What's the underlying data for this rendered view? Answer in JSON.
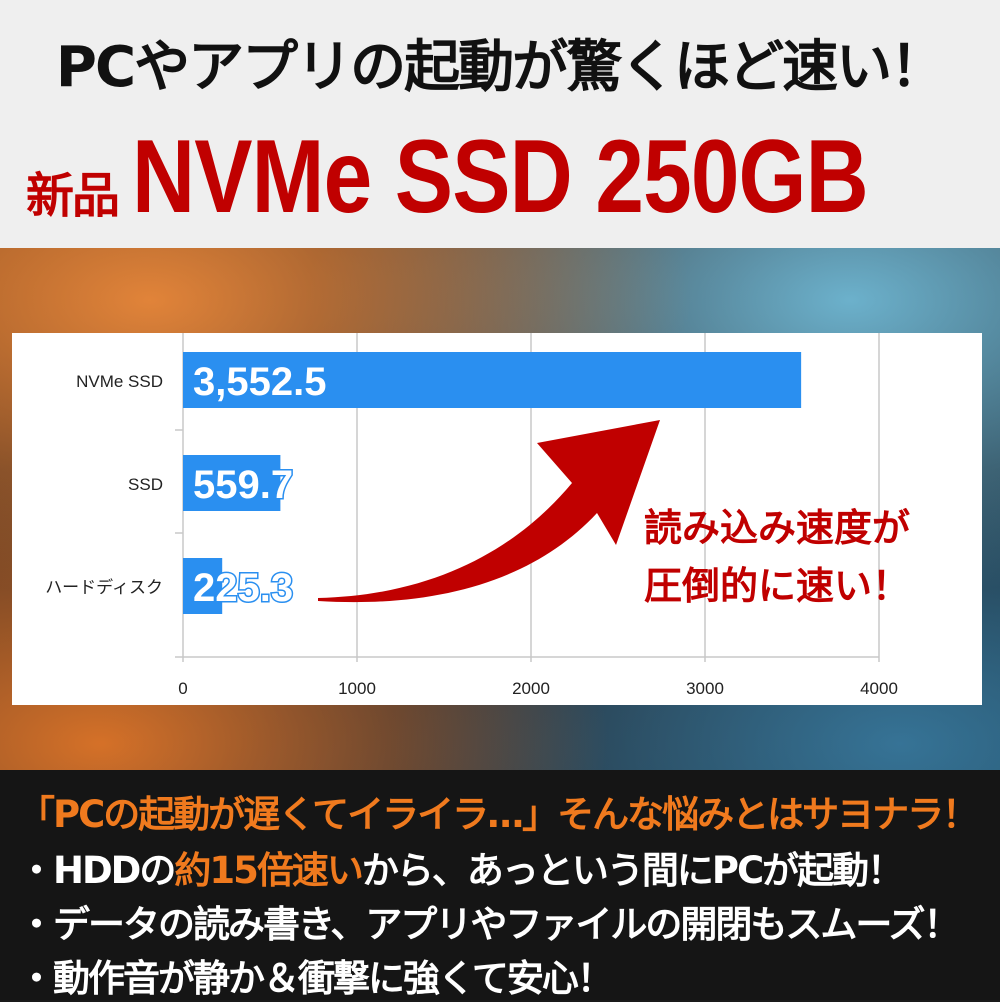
{
  "header": {
    "headline": "PCやアプリの起動が驚くほど速い！",
    "badge": "新品",
    "product": "NVMe SSD 250GB"
  },
  "colors": {
    "bar": "#2a8ff0",
    "accent_red": "#c00000",
    "accent_orange": "#f07a1e",
    "grid": "#c8c8c8"
  },
  "chart_data": {
    "type": "bar",
    "orientation": "horizontal",
    "categories": [
      "NVMe SSD",
      "SSD",
      "ハードディスク"
    ],
    "values": [
      3552.5,
      559.7,
      225.3
    ],
    "value_labels": [
      "3,552.5",
      "559.7",
      "225.3"
    ],
    "xlim": [
      0,
      4000
    ],
    "xticks": [
      "0",
      "1000",
      "2000",
      "3000",
      "4000"
    ],
    "grid": true,
    "title": "",
    "xlabel": "",
    "ylabel": "",
    "annotation": {
      "line1": "読み込み速度が",
      "line2": "圧倒的に速い！"
    }
  },
  "bottom": {
    "headline": "「PCの起動が遅くてイライラ…」そんな悩みとはサヨナラ！",
    "bullet1": {
      "pre": "・HDDの",
      "highlight": "約15倍速い",
      "post": "から、あっという間にPCが起動！"
    },
    "bullet2": "・データの読み書き、アプリやファイルの開閉もスムーズ！",
    "bullet3": "・動作音が静か＆衝撃に強くて安心！"
  }
}
